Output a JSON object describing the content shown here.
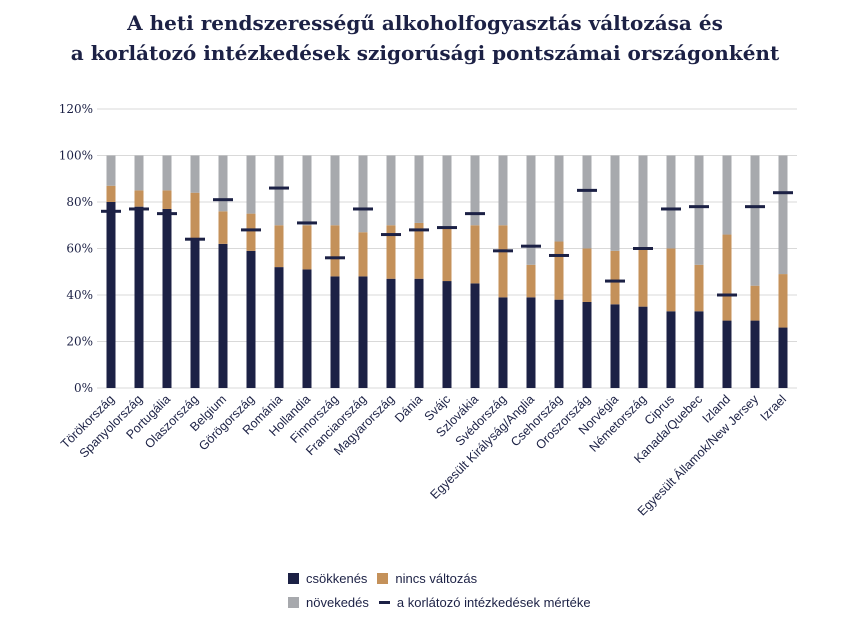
{
  "title_lines": [
    "A heti rendszerességű alkoholfogyasztás változása és",
    "a korlátozó intézkedések szigorúsági pontszámai országonként"
  ],
  "chart_data": {
    "type": "bar",
    "stacked": true,
    "title": "A heti rendszerességű alkoholfogyasztás változása és a korlátozó intézkedések szigorúsági pontszámai országonként",
    "ylim": [
      0,
      120
    ],
    "yticks": [
      "0%",
      "20%",
      "40%",
      "60%",
      "80%",
      "100%",
      "120%"
    ],
    "grid": true,
    "legend_position": "bottom",
    "categories": [
      "Törökország",
      "Spanyolország",
      "Portugália",
      "Olaszország",
      "Belgium",
      "Görögország",
      "Románia",
      "Hollandia",
      "Finnország",
      "Franciaország",
      "Magyarország",
      "Dánia",
      "Svájc",
      "Szlovákia",
      "Svédország",
      "Egyesült Királyság/Anglia",
      "Csehország",
      "Oroszország",
      "Norvégia",
      "Németország",
      "Ciprus",
      "Kanada/Quebec",
      "Izland",
      "Egyesült Államok/New Jersey",
      "Izrael"
    ],
    "series": [
      {
        "name": "csökkenés",
        "color": "#1c2145",
        "values": [
          80,
          78,
          77,
          64,
          62,
          59,
          52,
          51,
          48,
          48,
          47,
          47,
          46,
          45,
          39,
          39,
          38,
          37,
          36,
          35,
          33,
          33,
          29,
          29,
          26
        ]
      },
      {
        "name": "nincs változás",
        "color": "#c4915a",
        "values": [
          7,
          7,
          8,
          20,
          14,
          16,
          18,
          19,
          22,
          19,
          23,
          24,
          23,
          25,
          31,
          14,
          25,
          23,
          23,
          25,
          27,
          20,
          37,
          15,
          23
        ]
      },
      {
        "name": "növekedés",
        "color": "#a7a9ad",
        "values": [
          13,
          15,
          15,
          16,
          24,
          25,
          30,
          30,
          30,
          33,
          30,
          29,
          31,
          30,
          30,
          47,
          37,
          40,
          41,
          40,
          40,
          47,
          34,
          56,
          51
        ]
      }
    ],
    "markers": {
      "name": "a korlátozó intézkedések mértéke",
      "color": "#1c2145",
      "values": [
        76,
        77,
        75,
        64,
        81,
        68,
        86,
        71,
        56,
        77,
        66,
        68,
        69,
        75,
        59,
        61,
        57,
        85,
        46,
        60,
        77,
        78,
        40,
        78,
        84
      ]
    }
  }
}
